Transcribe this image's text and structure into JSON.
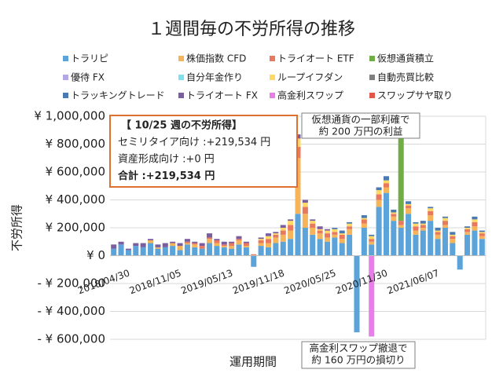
{
  "chart_data": {
    "type": "stacked_bar",
    "title": "１週間毎の不労所得の推移",
    "ylabel": "不労所得",
    "xlabel": "運用期間",
    "categories": [
      "2018/04/30",
      null,
      null,
      null,
      null,
      null,
      null,
      "2018/11/05",
      null,
      null,
      null,
      null,
      null,
      null,
      "2019/05/13",
      null,
      null,
      null,
      null,
      null,
      null,
      "2019/11/18",
      null,
      null,
      null,
      null,
      null,
      null,
      "2020/05/25",
      null,
      null,
      null,
      null,
      null,
      null,
      "2020/11/30",
      null,
      null,
      null,
      null,
      null,
      null,
      "2021/06/07",
      null,
      null,
      null,
      null,
      null,
      null,
      null,
      null
    ],
    "ylim": [
      -600000,
      1000000
    ],
    "yticks": [
      {
        "value": -600000,
        "label": "- ¥ 600,000"
      },
      {
        "value": -400000,
        "label": "- ¥ 400,000"
      },
      {
        "value": -200000,
        "label": "- ¥ 200,000"
      },
      {
        "value": 0,
        "label": "¥ 0"
      },
      {
        "value": 200000,
        "label": "¥ 200,000"
      },
      {
        "value": 400000,
        "label": "¥ 400,000"
      },
      {
        "value": 600000,
        "label": "¥ 600,000"
      },
      {
        "value": 800000,
        "label": "¥ 800,000"
      },
      {
        "value": 1000000,
        "label": "¥ 1,000,000"
      }
    ],
    "series": [
      {
        "name": "トラリピ",
        "color": "#5ba3d9",
        "values": [
          50000,
          80000,
          40000,
          70000,
          60000,
          90000,
          50000,
          60000,
          70000,
          40000,
          80000,
          60000,
          50000,
          90000,
          70000,
          60000,
          50000,
          80000,
          60000,
          -80000,
          70000,
          60000,
          90000,
          100000,
          120000,
          300000,
          200000,
          150000,
          120000,
          100000,
          130000,
          90000,
          150000,
          -550000,
          200000,
          80000,
          350000,
          450000,
          250000,
          200000,
          300000,
          150000,
          180000,
          250000,
          120000,
          200000,
          90000,
          -100000,
          150000,
          180000,
          120000
        ]
      },
      {
        "name": "株価指数 CFD",
        "color": "#f5b35a",
        "values": [
          0,
          0,
          0,
          0,
          0,
          20000,
          10000,
          0,
          20000,
          30000,
          10000,
          20000,
          0,
          30000,
          20000,
          10000,
          20000,
          30000,
          10000,
          0,
          20000,
          30000,
          40000,
          50000,
          60000,
          400000,
          100000,
          50000,
          40000,
          30000,
          20000,
          30000,
          40000,
          0,
          30000,
          20000,
          50000,
          40000,
          30000,
          20000,
          40000,
          30000,
          20000,
          40000,
          30000,
          20000,
          30000,
          0,
          20000,
          30000,
          20000
        ]
      },
      {
        "name": "トライオート ETF",
        "color": "#e8785e",
        "values": [
          0,
          0,
          0,
          0,
          0,
          0,
          0,
          0,
          0,
          0,
          10000,
          10000,
          20000,
          10000,
          20000,
          10000,
          20000,
          10000,
          20000,
          10000,
          20000,
          30000,
          20000,
          30000,
          40000,
          80000,
          50000,
          30000,
          20000,
          30000,
          20000,
          30000,
          20000,
          0,
          30000,
          20000,
          40000,
          30000,
          20000,
          30000,
          20000,
          30000,
          20000,
          30000,
          20000,
          30000,
          20000,
          0,
          20000,
          30000,
          20000
        ]
      },
      {
        "name": "仮想通貨積立",
        "color": "#70ad47",
        "values": [
          0,
          0,
          0,
          0,
          0,
          0,
          0,
          0,
          0,
          0,
          0,
          0,
          0,
          0,
          0,
          0,
          0,
          0,
          0,
          0,
          0,
          0,
          0,
          0,
          0,
          0,
          0,
          0,
          0,
          0,
          0,
          0,
          0,
          0,
          0,
          0,
          0,
          0,
          0,
          700000,
          0,
          0,
          0,
          0,
          0,
          0,
          0,
          0,
          0,
          0,
          0
        ]
      },
      {
        "name": "優待 FX",
        "color": "#b4a7e6",
        "values": [
          0,
          0,
          0,
          0,
          0,
          0,
          0,
          0,
          0,
          0,
          0,
          0,
          0,
          0,
          0,
          0,
          0,
          0,
          0,
          0,
          0,
          0,
          0,
          0,
          0,
          0,
          0,
          0,
          0,
          0,
          0,
          0,
          0,
          0,
          0,
          0,
          0,
          0,
          0,
          0,
          0,
          0,
          0,
          0,
          0,
          0,
          0,
          0,
          0,
          0,
          0
        ]
      },
      {
        "name": "自分年金作り",
        "color": "#7fe0f0",
        "values": [
          0,
          0,
          0,
          0,
          0,
          0,
          0,
          0,
          0,
          0,
          0,
          0,
          0,
          0,
          0,
          0,
          0,
          0,
          0,
          0,
          0,
          0,
          0,
          0,
          0,
          0,
          0,
          0,
          0,
          0,
          0,
          0,
          0,
          0,
          0,
          0,
          0,
          0,
          0,
          0,
          0,
          0,
          0,
          0,
          0,
          0,
          0,
          0,
          0,
          0,
          0
        ]
      },
      {
        "name": "ループイフダン",
        "color": "#ffd966",
        "values": [
          0,
          0,
          0,
          0,
          0,
          0,
          0,
          0,
          0,
          0,
          0,
          0,
          0,
          0,
          0,
          0,
          0,
          0,
          0,
          0,
          10000,
          20000,
          10000,
          20000,
          30000,
          60000,
          30000,
          20000,
          10000,
          20000,
          20000,
          10000,
          20000,
          0,
          10000,
          20000,
          30000,
          20000,
          10000,
          20000,
          10000,
          20000,
          10000,
          20000,
          10000,
          20000,
          10000,
          0,
          10000,
          20000,
          10000
        ]
      },
      {
        "name": "自動売買比較",
        "color": "#7f7f7f",
        "values": [
          0,
          0,
          0,
          0,
          0,
          0,
          0,
          0,
          0,
          0,
          0,
          0,
          0,
          0,
          0,
          0,
          0,
          0,
          0,
          0,
          0,
          0,
          0,
          0,
          0,
          0,
          0,
          0,
          0,
          0,
          0,
          0,
          0,
          0,
          0,
          0,
          0,
          0,
          0,
          0,
          0,
          0,
          0,
          0,
          0,
          0,
          0,
          0,
          0,
          0,
          0
        ]
      },
      {
        "name": "トラッキングトレード",
        "color": "#4a7ab0",
        "values": [
          0,
          0,
          0,
          0,
          0,
          0,
          0,
          0,
          0,
          0,
          0,
          0,
          0,
          0,
          0,
          0,
          0,
          0,
          0,
          0,
          0,
          0,
          0,
          0,
          0,
          0,
          0,
          0,
          0,
          0,
          10000,
          20000,
          10000,
          0,
          20000,
          10000,
          20000,
          30000,
          20000,
          10000,
          20000,
          10000,
          20000,
          10000,
          20000,
          10000,
          20000,
          0,
          10000,
          20000,
          10000
        ]
      },
      {
        "name": "トライオート FX",
        "color": "#7a5ea0",
        "values": [
          30000,
          20000,
          10000,
          20000,
          30000,
          10000,
          20000,
          30000,
          10000,
          20000,
          20000,
          10000,
          20000,
          30000,
          10000,
          20000,
          10000,
          20000,
          10000,
          0,
          10000,
          20000,
          10000,
          20000,
          10000,
          30000,
          20000,
          10000,
          20000,
          10000,
          0,
          0,
          0,
          0,
          0,
          0,
          0,
          0,
          0,
          0,
          0,
          0,
          0,
          0,
          0,
          0,
          0,
          0,
          0,
          0,
          0
        ]
      },
      {
        "name": "高金利スワップ",
        "color": "#e87ee8",
        "values": [
          0,
          0,
          0,
          0,
          0,
          0,
          0,
          0,
          0,
          0,
          0,
          0,
          0,
          0,
          0,
          0,
          0,
          0,
          0,
          0,
          0,
          0,
          0,
          0,
          0,
          0,
          0,
          0,
          0,
          0,
          0,
          0,
          0,
          0,
          0,
          -580000,
          0,
          0,
          0,
          0,
          0,
          0,
          0,
          0,
          0,
          0,
          0,
          0,
          0,
          0,
          0
        ]
      },
      {
        "name": "スワップサヤ取り",
        "color": "#e0584a",
        "values": [
          0,
          0,
          0,
          0,
          0,
          0,
          0,
          0,
          0,
          0,
          0,
          0,
          0,
          0,
          0,
          0,
          0,
          0,
          0,
          0,
          0,
          0,
          0,
          0,
          0,
          0,
          0,
          0,
          0,
          0,
          0,
          0,
          0,
          0,
          0,
          0,
          0,
          0,
          0,
          0,
          0,
          0,
          0,
          0,
          0,
          0,
          0,
          0,
          0,
          0,
          0
        ]
      }
    ],
    "grid": true,
    "info_box": [
      "【 10/25 週の不労所得】",
      "セミリタイア向け :+219,534 円",
      "資産形成向け :+0 円",
      "合計 :+219,534 円"
    ],
    "annotations": [
      [
        "仮想通貨の一部利確で",
        "約 200 万円の利益"
      ],
      [
        "高金利スワップ撤退で",
        "約 160 万円の損切り"
      ]
    ]
  }
}
